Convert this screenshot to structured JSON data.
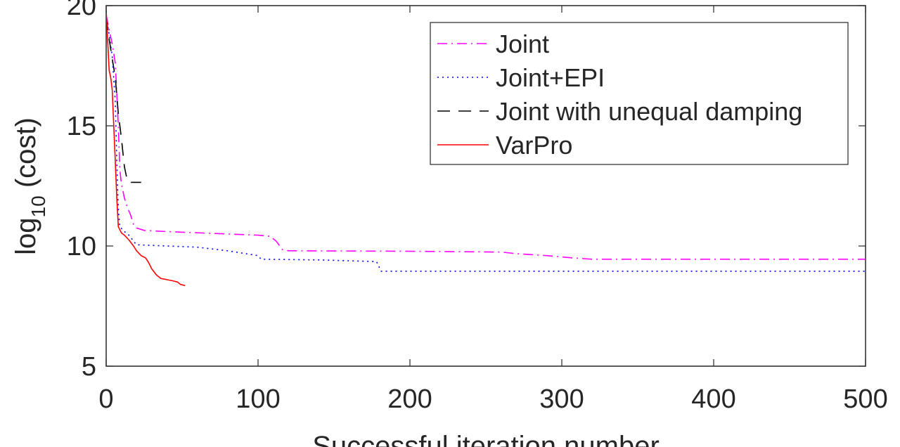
{
  "chart_data": {
    "type": "line",
    "title": "",
    "xlabel": "Successful iteration number",
    "ylabel": {
      "main": "log",
      "sub": "10",
      "rest": " (cost)"
    },
    "xlim": [
      0,
      500
    ],
    "ylim": [
      5,
      20
    ],
    "xticks": [
      0,
      100,
      200,
      300,
      400,
      500
    ],
    "yticks": [
      5,
      10,
      15,
      20
    ],
    "grid": false,
    "legend_position": "top-right",
    "series": [
      {
        "name": "Joint",
        "color": "#ff00ff",
        "dash": "dash-dot",
        "points": [
          [
            0,
            19.6
          ],
          [
            2,
            19.0
          ],
          [
            4,
            18.4
          ],
          [
            6,
            17.6
          ],
          [
            8,
            15.0
          ],
          [
            9,
            13.2
          ],
          [
            10,
            12.6
          ],
          [
            12,
            12.0
          ],
          [
            14,
            11.6
          ],
          [
            16,
            11.3
          ],
          [
            18,
            10.9
          ],
          [
            20,
            10.75
          ],
          [
            25,
            10.65
          ],
          [
            40,
            10.6
          ],
          [
            60,
            10.55
          ],
          [
            80,
            10.5
          ],
          [
            100,
            10.45
          ],
          [
            108,
            10.4
          ],
          [
            112,
            10.2
          ],
          [
            116,
            9.85
          ],
          [
            120,
            9.8
          ],
          [
            200,
            9.78
          ],
          [
            260,
            9.75
          ],
          [
            270,
            9.68
          ],
          [
            290,
            9.6
          ],
          [
            308,
            9.5
          ],
          [
            320,
            9.45
          ],
          [
            500,
            9.45
          ]
        ]
      },
      {
        "name": "Joint+EPI",
        "color": "#0000ff",
        "dash": "dotted",
        "points": [
          [
            0,
            19.5
          ],
          [
            2,
            18.8
          ],
          [
            4,
            17.9
          ],
          [
            6,
            16.0
          ],
          [
            7,
            13.5
          ],
          [
            8,
            11.5
          ],
          [
            9,
            10.8
          ],
          [
            12,
            10.6
          ],
          [
            15,
            10.45
          ],
          [
            18,
            10.2
          ],
          [
            20,
            10.05
          ],
          [
            40,
            10.0
          ],
          [
            60,
            9.95
          ],
          [
            80,
            9.8
          ],
          [
            100,
            9.6
          ],
          [
            102,
            9.45
          ],
          [
            140,
            9.42
          ],
          [
            178,
            9.35
          ],
          [
            181,
            8.95
          ],
          [
            500,
            8.95
          ]
        ]
      },
      {
        "name": "Joint with unequal damping",
        "color": "#000000",
        "dash": "dashed",
        "points": [
          [
            0,
            19.5
          ],
          [
            2,
            18.6
          ],
          [
            4,
            17.8
          ],
          [
            6,
            17.0
          ],
          [
            8,
            15.5
          ],
          [
            10,
            14.5
          ],
          [
            12,
            13.3
          ],
          [
            14,
            12.7
          ],
          [
            16,
            12.65
          ],
          [
            23,
            12.65
          ]
        ]
      },
      {
        "name": "VarPro",
        "color": "#ff0000",
        "dash": "solid",
        "points": [
          [
            0,
            19.8
          ],
          [
            1,
            18.5
          ],
          [
            2,
            17.3
          ],
          [
            3,
            17.0
          ],
          [
            4,
            16.5
          ],
          [
            5,
            15.0
          ],
          [
            6,
            13.5
          ],
          [
            7,
            12.0
          ],
          [
            8,
            10.8
          ],
          [
            10,
            10.55
          ],
          [
            12,
            10.45
          ],
          [
            15,
            10.25
          ],
          [
            18,
            10.0
          ],
          [
            20,
            9.8
          ],
          [
            23,
            9.6
          ],
          [
            26,
            9.5
          ],
          [
            28,
            9.3
          ],
          [
            30,
            9.05
          ],
          [
            33,
            8.8
          ],
          [
            36,
            8.65
          ],
          [
            40,
            8.6
          ],
          [
            44,
            8.55
          ],
          [
            47,
            8.5
          ],
          [
            49,
            8.4
          ],
          [
            52,
            8.35
          ]
        ]
      }
    ]
  }
}
